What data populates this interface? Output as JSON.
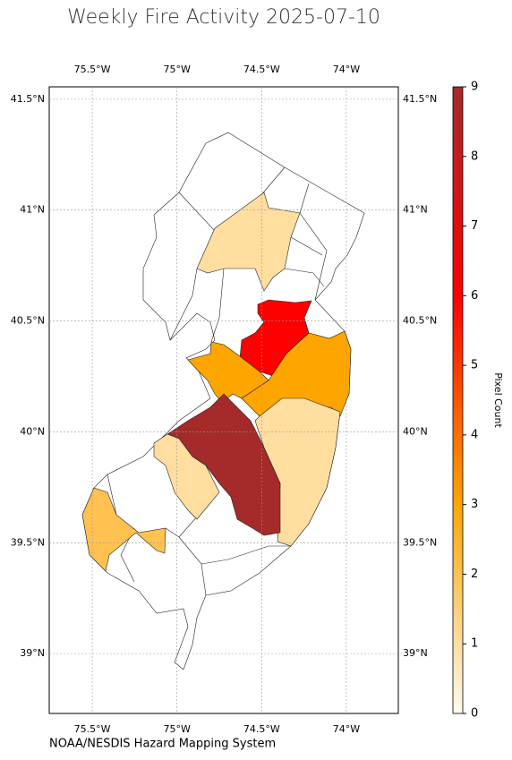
{
  "chart_data": {
    "type": "choropleth",
    "title": "Weekly Fire Activity 2025-07-10",
    "credit": "NOAA/NESDIS Hazard Mapping System",
    "xlim": [
      -75.754,
      -73.693
    ],
    "ylim": [
      38.73,
      41.556
    ],
    "xticks": [
      {
        "value": -75.5,
        "label": "75.5°W"
      },
      {
        "value": -75,
        "label": "75°W"
      },
      {
        "value": -74.5,
        "label": "74.5°W"
      },
      {
        "value": -74,
        "label": "74°W"
      }
    ],
    "yticks": [
      {
        "value": 41.5,
        "label": "41.5°N"
      },
      {
        "value": 41,
        "label": "41°N"
      },
      {
        "value": 40.5,
        "label": "40.5°N"
      },
      {
        "value": 40,
        "label": "40°N"
      },
      {
        "value": 39.5,
        "label": "39.5°N"
      },
      {
        "value": 39,
        "label": "39°N"
      }
    ],
    "grid": true,
    "values": [
      1,
      6,
      3,
      3,
      1,
      9,
      1,
      2
    ],
    "colorbar": {
      "label": "Pixel Count",
      "lim": [
        0,
        9
      ],
      "ticks": [
        0,
        1,
        2,
        3,
        4,
        5,
        6,
        7,
        8,
        9
      ],
      "colors": [
        "#fffaf0",
        "#ffa500",
        "#ff0000",
        "#a52a2a"
      ]
    }
  }
}
